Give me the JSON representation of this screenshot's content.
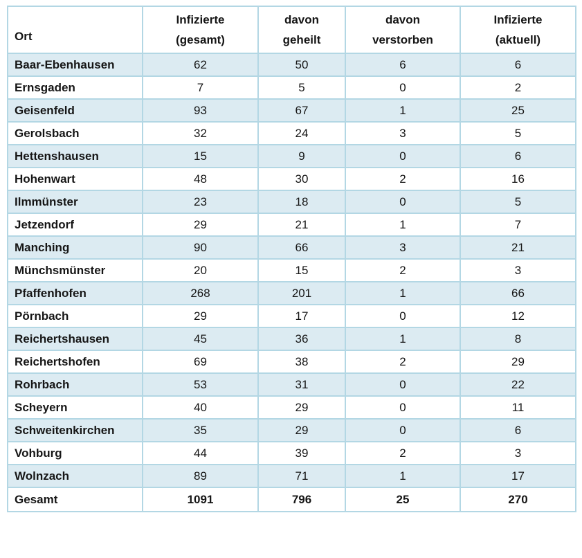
{
  "colors": {
    "row_alt": "#dcebf2",
    "grid": "#b3d7e4",
    "text": "#161616",
    "header_bg": "#ffffff"
  },
  "table": {
    "header": {
      "ort": "Ort",
      "col2_line1": "Infizierte",
      "col2_line2": "(gesamt)",
      "col3_line1": "davon",
      "col3_line2": "geheilt",
      "col4_line1": "davon",
      "col4_line2": "verstorben",
      "col5_line1": "Infizierte",
      "col5_line2": "(aktuell)"
    },
    "rows": [
      {
        "ort": "Baar-Ebenhausen",
        "values": [
          "62",
          "50",
          "6",
          "6"
        ]
      },
      {
        "ort": "Ernsgaden",
        "values": [
          "7",
          "5",
          "0",
          "2"
        ]
      },
      {
        "ort": "Geisenfeld",
        "values": [
          "93",
          "67",
          "1",
          "25"
        ]
      },
      {
        "ort": "Gerolsbach",
        "values": [
          "32",
          "24",
          "3",
          "5"
        ]
      },
      {
        "ort": "Hettenshausen",
        "values": [
          "15",
          "9",
          "0",
          "6"
        ]
      },
      {
        "ort": "Hohenwart",
        "values": [
          "48",
          "30",
          "2",
          "16"
        ]
      },
      {
        "ort": "Ilmmünster",
        "values": [
          "23",
          "18",
          "0",
          "5"
        ]
      },
      {
        "ort": "Jetzendorf",
        "values": [
          "29",
          "21",
          "1",
          "7"
        ]
      },
      {
        "ort": "Manching",
        "values": [
          "90",
          "66",
          "3",
          "21"
        ]
      },
      {
        "ort": "Münchsmünster",
        "values": [
          "20",
          "15",
          "2",
          "3"
        ]
      },
      {
        "ort": "Pfaffenhofen",
        "values": [
          "268",
          "201",
          "1",
          "66"
        ]
      },
      {
        "ort": "Pörnbach",
        "values": [
          "29",
          "17",
          "0",
          "12"
        ]
      },
      {
        "ort": "Reichertshausen",
        "values": [
          "45",
          "36",
          "1",
          "8"
        ]
      },
      {
        "ort": "Reichertshofen",
        "values": [
          "69",
          "38",
          "2",
          "29"
        ]
      },
      {
        "ort": "Rohrbach",
        "values": [
          "53",
          "31",
          "0",
          "22"
        ]
      },
      {
        "ort": "Scheyern",
        "values": [
          "40",
          "29",
          "0",
          "11"
        ]
      },
      {
        "ort": "Schweitenkirchen",
        "values": [
          "35",
          "29",
          "0",
          "6"
        ]
      },
      {
        "ort": "Vohburg",
        "values": [
          "44",
          "39",
          "2",
          "3"
        ]
      },
      {
        "ort": "Wolnzach",
        "values": [
          "89",
          "71",
          "1",
          "17"
        ]
      }
    ],
    "total": {
      "ort": "Gesamt",
      "values": [
        "1091",
        "796",
        "25",
        "270"
      ]
    }
  },
  "chart_data": {
    "type": "table",
    "columns": [
      "Ort",
      "Infizierte (gesamt)",
      "davon geheilt",
      "davon verstorben",
      "Infizierte (aktuell)"
    ],
    "rows": [
      [
        "Baar-Ebenhausen",
        62,
        50,
        6,
        6
      ],
      [
        "Ernsgaden",
        7,
        5,
        0,
        2
      ],
      [
        "Geisenfeld",
        93,
        67,
        1,
        25
      ],
      [
        "Gerolsbach",
        32,
        24,
        3,
        5
      ],
      [
        "Hettenshausen",
        15,
        9,
        0,
        6
      ],
      [
        "Hohenwart",
        48,
        30,
        2,
        16
      ],
      [
        "Ilmmünster",
        23,
        18,
        0,
        5
      ],
      [
        "Jetzendorf",
        29,
        21,
        1,
        7
      ],
      [
        "Manching",
        90,
        66,
        3,
        21
      ],
      [
        "Münchsmünster",
        20,
        15,
        2,
        3
      ],
      [
        "Pfaffenhofen",
        268,
        201,
        1,
        66
      ],
      [
        "Pörnbach",
        29,
        17,
        0,
        12
      ],
      [
        "Reichertshausen",
        45,
        36,
        1,
        8
      ],
      [
        "Reichertshofen",
        69,
        38,
        2,
        29
      ],
      [
        "Rohrbach",
        53,
        31,
        0,
        22
      ],
      [
        "Scheyern",
        40,
        29,
        0,
        11
      ],
      [
        "Schweitenkirchen",
        35,
        29,
        0,
        6
      ],
      [
        "Vohburg",
        44,
        39,
        2,
        3
      ],
      [
        "Wolnzach",
        89,
        71,
        1,
        17
      ]
    ],
    "total_row": [
      "Gesamt",
      1091,
      796,
      25,
      270
    ],
    "layout": {
      "alternating_row_fill": "#dcebf2",
      "grid_color": "#b3d7e4",
      "first_column_align": "left",
      "value_columns_align": "center",
      "total_row_bold": true
    }
  }
}
